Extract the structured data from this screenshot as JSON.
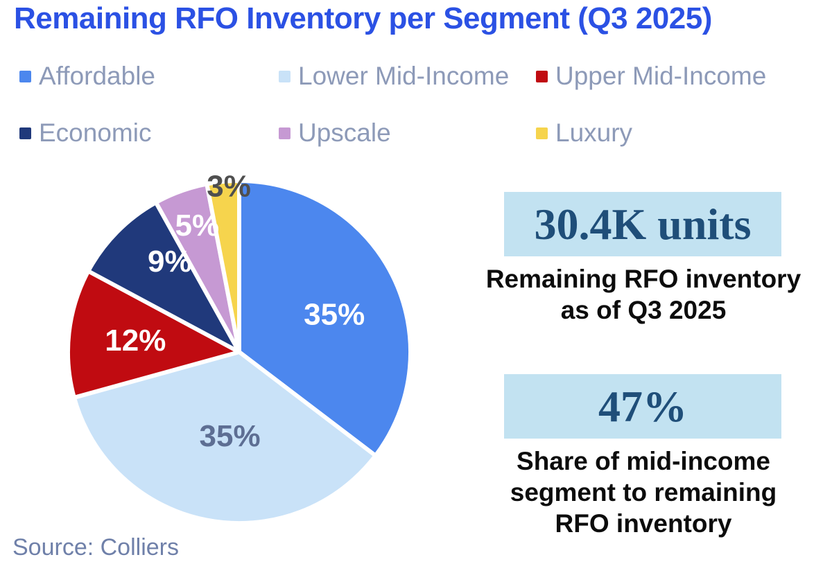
{
  "title": "Remaining RFO Inventory per Segment (Q3 2025)",
  "source": "Source: Colliers",
  "colors": {
    "title_accent": "#2b51e4",
    "legend_text": "#8d9ab8",
    "stat_box_bg": "#c2e2f1",
    "stat_value": "#1f4e79",
    "caption_text": "#0c0c0c",
    "source_text": "#6f80a9"
  },
  "chart_data": {
    "type": "pie",
    "title": "Remaining RFO Inventory per Segment (Q3 2025)",
    "categories": [
      "Affordable",
      "Lower Mid-Income",
      "Upper Mid-Income",
      "Economic",
      "Upscale",
      "Luxury"
    ],
    "values": [
      35,
      35,
      12,
      9,
      5,
      3
    ],
    "unit": "%",
    "labels": [
      "35%",
      "35%",
      "12%",
      "9%",
      "5%",
      "3%"
    ],
    "colors": [
      "#4c87ee",
      "#c9e2f8",
      "#c00b11",
      "#20397b",
      "#c699d3",
      "#f6d44d"
    ],
    "label_colors": [
      "#ffffff",
      "#5d6e93",
      "#ffffff",
      "#ffffff",
      "#ffffff",
      "#4f4f4f"
    ],
    "start_angle_deg": 0,
    "direction": "clockwise",
    "legend_position": "top",
    "slice_gap_color": "#ffffff"
  },
  "stats": [
    {
      "value": "30.4K units",
      "caption_lines": [
        "Remaining RFO inventory",
        "as of Q3 2025"
      ]
    },
    {
      "value": "47%",
      "caption_lines": [
        "Share of mid-income",
        "segment to remaining",
        "RFO inventory"
      ]
    }
  ]
}
